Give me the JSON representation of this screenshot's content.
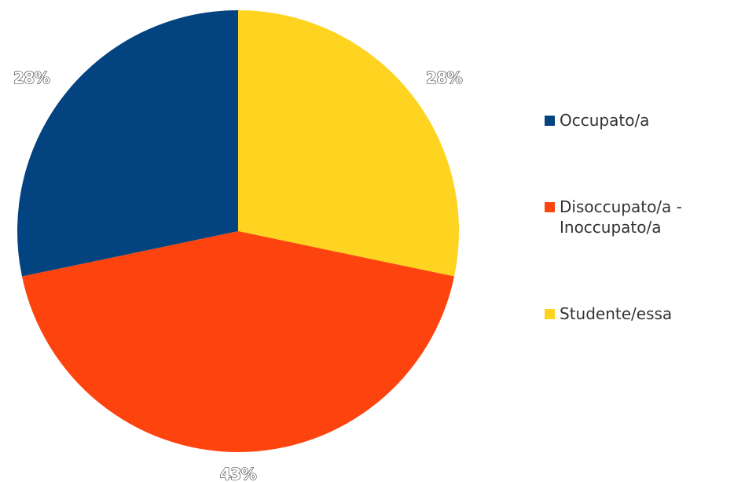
{
  "chart_data": {
    "type": "pie",
    "slices": [
      {
        "label": "Occupato/a",
        "value": 28,
        "value_label": "28%",
        "color": "#03437f"
      },
      {
        "label": "Disoccupato/a -\nInoccupato/a",
        "value": 43,
        "value_label": "43%",
        "color": "#fd440f"
      },
      {
        "label": "Studente/essa",
        "value": 28,
        "value_label": "28%",
        "color": "#fed420"
      }
    ],
    "start_angle_deg": 0,
    "direction": "clockwise_from_top_yellow_first",
    "legend": {
      "position": "right",
      "order": [
        "Occupato/a",
        "Disoccupato/a -\nInoccupato/a",
        "Studente/essa"
      ]
    }
  }
}
